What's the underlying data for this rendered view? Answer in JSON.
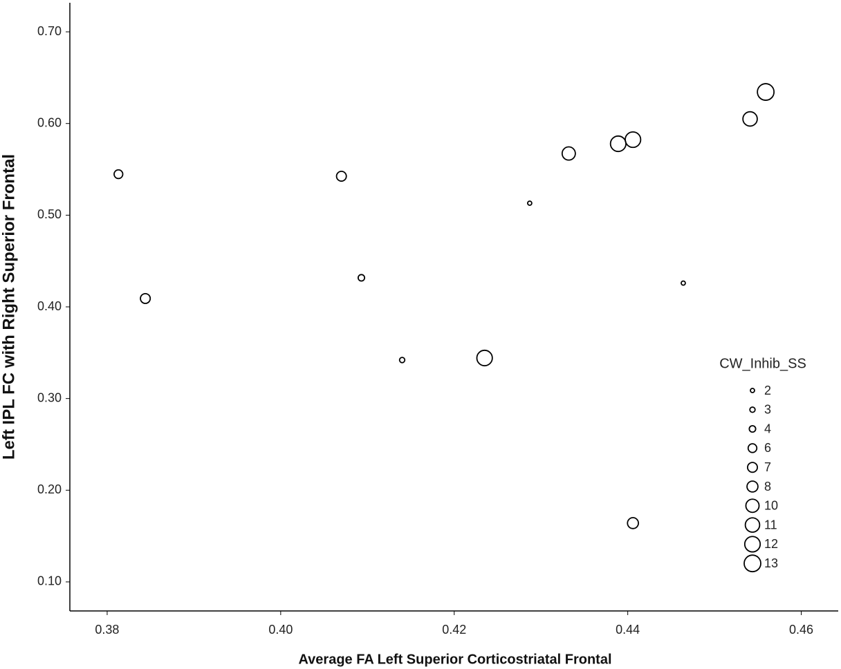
{
  "chart_data": {
    "type": "scatter",
    "x_label": "Average FA Left Superior Corticostriatal Frontal",
    "y_label": "Left IPL FC with Right Superior Frontal",
    "x": [
      0.3813,
      0.3844,
      0.407,
      0.4093,
      0.414,
      0.4235,
      0.4287,
      0.4332,
      0.4389,
      0.4406,
      0.4406,
      0.4464,
      0.4541,
      0.4559
    ],
    "series": [
      {
        "name": "CW_Inhib_SS",
        "color": "#000000",
        "values": [
          0.5447,
          0.4091,
          0.5425,
          0.4317,
          0.342,
          0.3442,
          0.5131,
          0.5673,
          0.5779,
          0.5824,
          0.1641,
          0.4259,
          0.605,
          0.6344
        ],
        "sizes": [
          6,
          7,
          7,
          4,
          3,
          12,
          2,
          10,
          12,
          12,
          8,
          2,
          11,
          13
        ]
      }
    ],
    "size_legend": [
      2,
      3,
      4,
      6,
      7,
      8,
      10,
      11,
      12,
      13
    ],
    "xlim": [
      0.3757,
      0.4641
    ],
    "ylim": [
      0.0683,
      0.7317
    ],
    "xticks": [
      0.38,
      {
        "value": 0.4,
        "label": "0.40"
      },
      0.42,
      0.44,
      0.46
    ],
    "yticks": [
      {
        "value": 0.1,
        "label": "0.10"
      },
      {
        "value": 0.2,
        "label": "0.20"
      },
      {
        "value": 0.3,
        "label": "0.30"
      },
      {
        "value": 0.4,
        "label": "0.40"
      },
      {
        "value": 0.5,
        "label": "0.50"
      },
      {
        "value": 0.6,
        "label": "0.60"
      },
      {
        "value": 0.7,
        "label": "0.70"
      }
    ]
  }
}
